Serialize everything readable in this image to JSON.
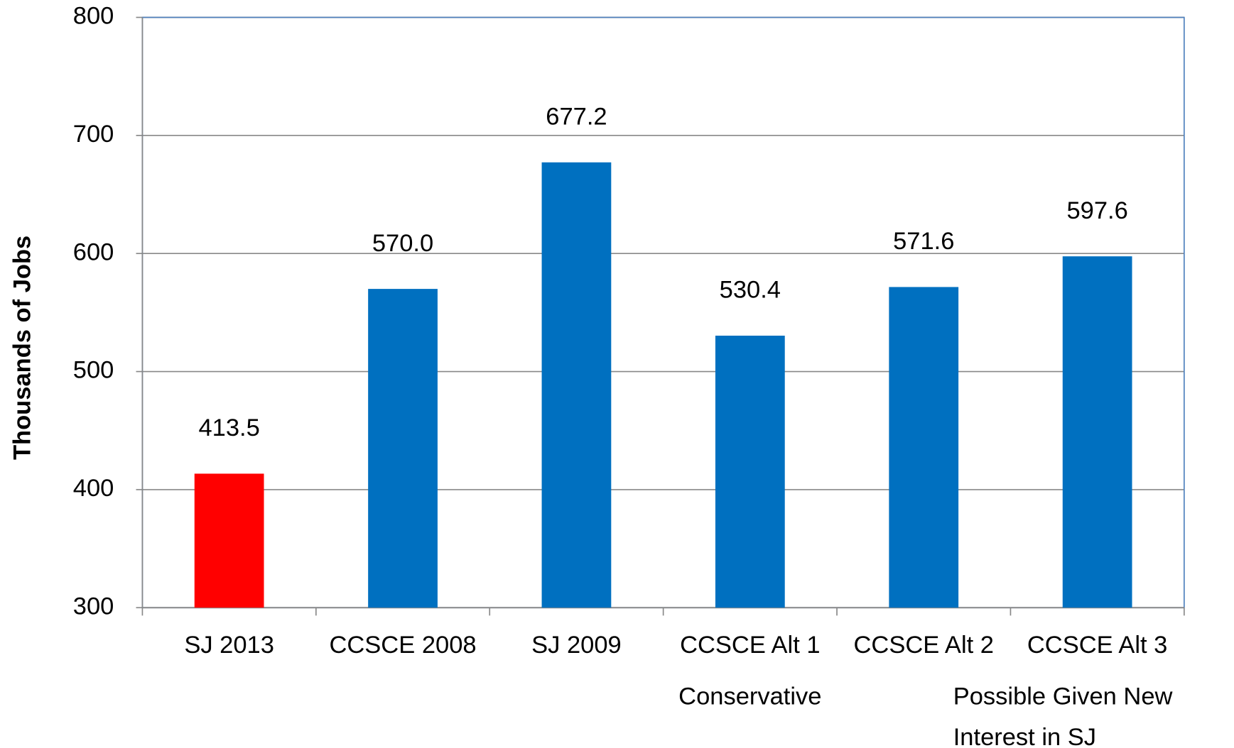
{
  "chart_data": {
    "type": "bar",
    "y_label": "Thousands of Jobs",
    "categories": [
      "SJ 2013",
      "CCSCE 2008",
      "SJ 2009",
      "CCSCE Alt 1",
      "CCSCE Alt 2",
      "CCSCE Alt 3"
    ],
    "values": [
      413.5,
      570.0,
      677.2,
      530.4,
      571.6,
      597.6
    ],
    "value_labels": [
      "413.5",
      "570.0",
      "677.2",
      "530.4",
      "571.6",
      "597.6"
    ],
    "colors": [
      "#ff0000",
      "#0070c0",
      "#0070c0",
      "#0070c0",
      "#0070c0",
      "#0070c0"
    ],
    "ylim": [
      300,
      800
    ],
    "yticks": [
      300,
      400,
      500,
      600,
      700,
      800
    ],
    "grid": true,
    "annotations": [
      [
        "Conservative"
      ],
      [
        "Possible Given New",
        "Interest in SJ"
      ]
    ]
  }
}
